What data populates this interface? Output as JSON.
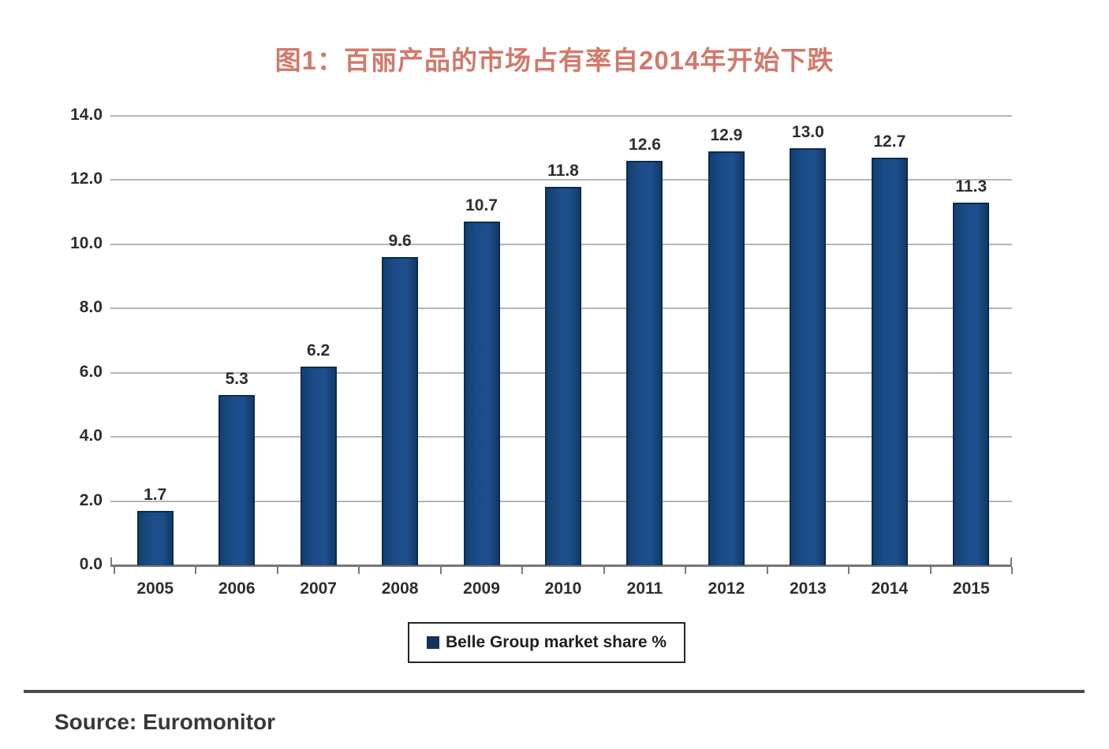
{
  "header": {
    "title": "图1：百丽产品的市场占有率自2014年开始下跌",
    "title_color": "#d2796a"
  },
  "chart_data": {
    "type": "bar",
    "title": "图1：百丽产品的市场占有率自2014年开始下跌",
    "categories": [
      "2005",
      "2006",
      "2007",
      "2008",
      "2009",
      "2010",
      "2011",
      "2012",
      "2013",
      "2014",
      "2015"
    ],
    "series": [
      {
        "name": "Belle Group market share %",
        "values": [
          1.7,
          5.3,
          6.2,
          9.6,
          10.7,
          11.8,
          12.6,
          12.9,
          13.0,
          12.7,
          11.3
        ]
      }
    ],
    "value_label_decimals": 1,
    "xlabel": "",
    "ylabel": "",
    "ylim": [
      0,
      14
    ],
    "y_tick_labels": [
      "0.0",
      "2.0",
      "4.0",
      "6.0",
      "8.0",
      "10.0",
      "12.0",
      "14.0"
    ],
    "grid": true,
    "legend": {
      "label": "Belle Group market share %",
      "position": "bottom-center",
      "marker_color": "#143359"
    },
    "bar_color": "#1b4c88",
    "bar_border_color": "#0d2b4e",
    "gridline_color": "#b5b5b5"
  },
  "footer": {
    "source_label": "Source: Euromonitor"
  }
}
